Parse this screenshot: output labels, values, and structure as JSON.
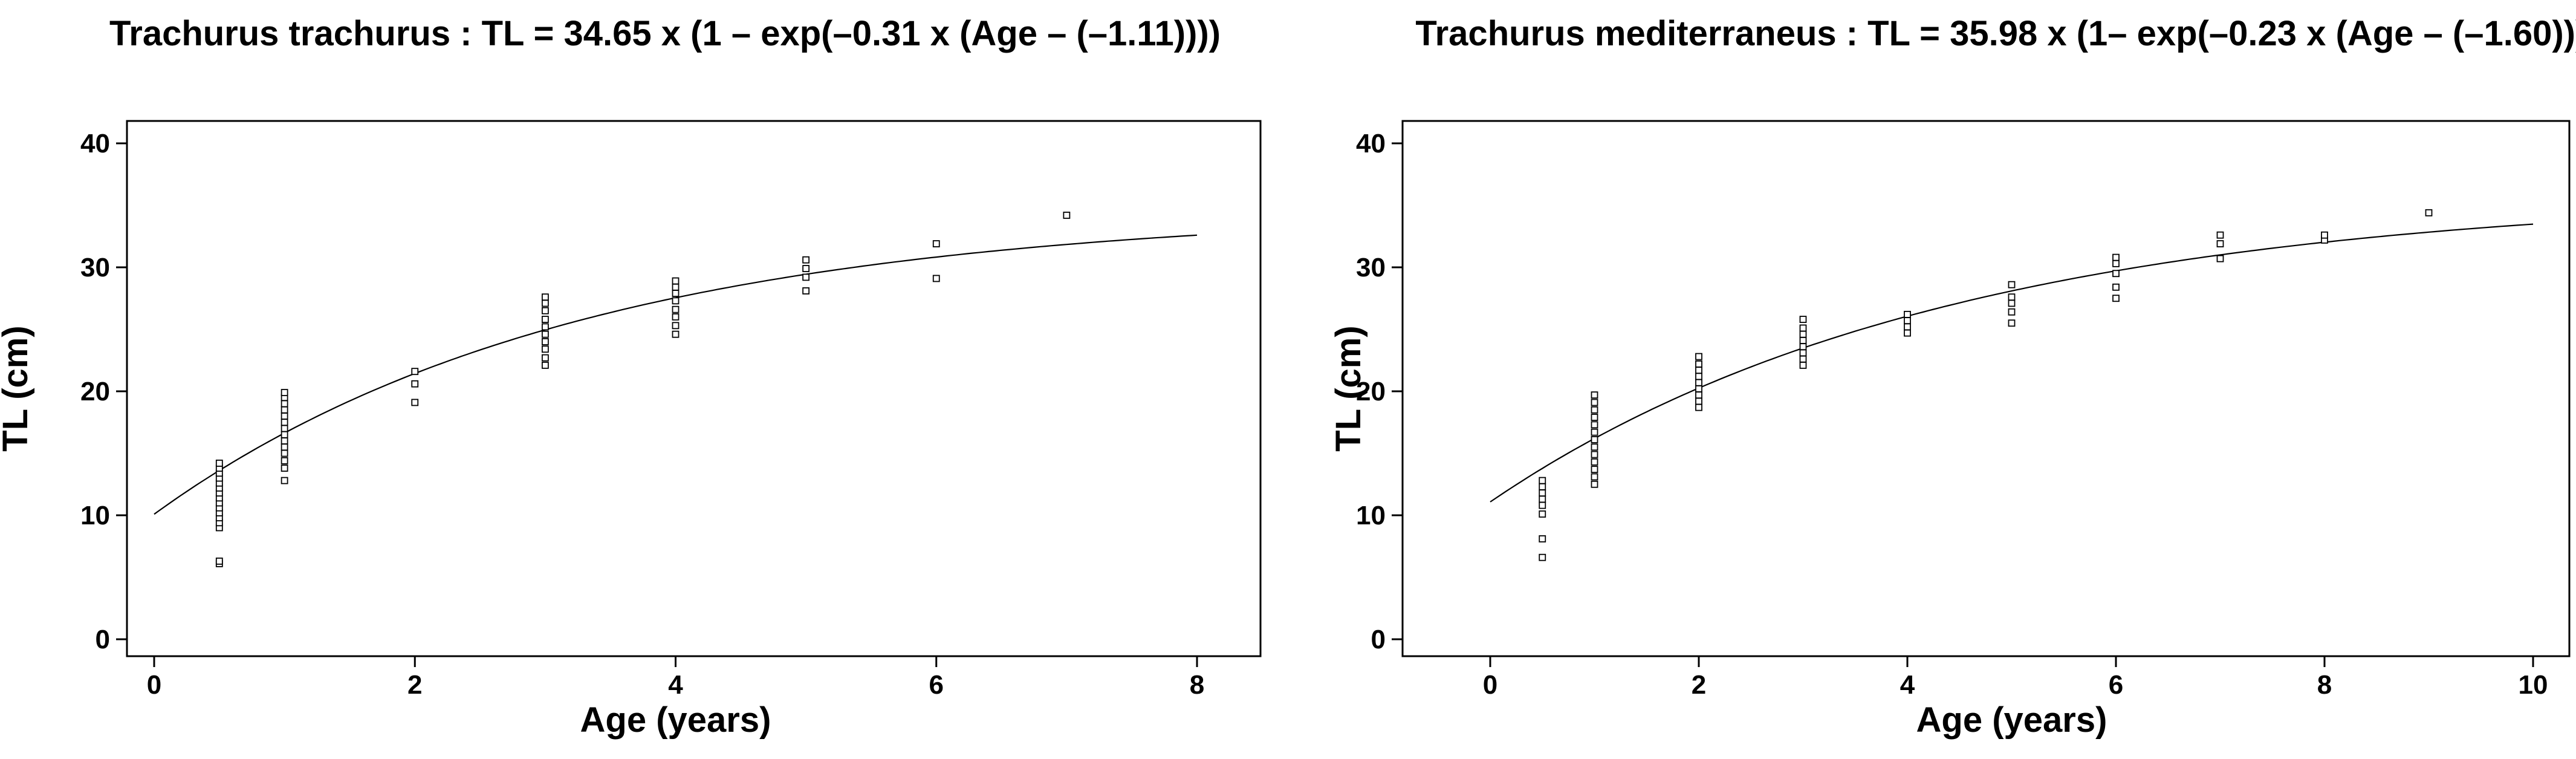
{
  "chart_data": [
    {
      "type": "scatter",
      "title": "Trachurus trachurus : TL = 34.65 x (1 – exp(–0.31 x (Age – (–1.11))))",
      "xlabel": "Age (years)",
      "ylabel": "TL (cm)",
      "xlim": [
        0,
        8
      ],
      "ylim": [
        0,
        40
      ],
      "xticks": [
        "0",
        "2",
        "4",
        "6",
        "8"
      ],
      "yticks": [
        "0",
        "10",
        "20",
        "30",
        "40"
      ],
      "grid": false,
      "curve": {
        "type": "von_bertalanffy",
        "Linf": 34.65,
        "k": 0.31,
        "t0": -1.11,
        "x_range": [
          0,
          8
        ]
      },
      "points": [
        {
          "x": 0.5,
          "y": 6.1
        },
        {
          "x": 0.5,
          "y": 6.3
        },
        {
          "x": 0.5,
          "y": 9.0
        },
        {
          "x": 0.5,
          "y": 9.4
        },
        {
          "x": 0.5,
          "y": 9.8
        },
        {
          "x": 0.5,
          "y": 10.2
        },
        {
          "x": 0.5,
          "y": 10.6
        },
        {
          "x": 0.5,
          "y": 11.0
        },
        {
          "x": 0.5,
          "y": 11.4
        },
        {
          "x": 0.5,
          "y": 11.8
        },
        {
          "x": 0.5,
          "y": 12.2
        },
        {
          "x": 0.5,
          "y": 12.6
        },
        {
          "x": 0.5,
          "y": 13.0
        },
        {
          "x": 0.5,
          "y": 13.4
        },
        {
          "x": 0.5,
          "y": 13.8
        },
        {
          "x": 0.5,
          "y": 14.2
        },
        {
          "x": 1,
          "y": 12.8
        },
        {
          "x": 1,
          "y": 13.8
        },
        {
          "x": 1,
          "y": 14.4
        },
        {
          "x": 1,
          "y": 15.0
        },
        {
          "x": 1,
          "y": 15.5
        },
        {
          "x": 1,
          "y": 16.0
        },
        {
          "x": 1,
          "y": 16.5
        },
        {
          "x": 1,
          "y": 17.0
        },
        {
          "x": 1,
          "y": 17.5
        },
        {
          "x": 1,
          "y": 18.0
        },
        {
          "x": 1,
          "y": 18.5
        },
        {
          "x": 1,
          "y": 19.0
        },
        {
          "x": 1,
          "y": 19.5
        },
        {
          "x": 1,
          "y": 19.9
        },
        {
          "x": 2,
          "y": 19.1
        },
        {
          "x": 2,
          "y": 20.6
        },
        {
          "x": 2,
          "y": 21.6
        },
        {
          "x": 3,
          "y": 22.1
        },
        {
          "x": 3,
          "y": 22.7
        },
        {
          "x": 3,
          "y": 23.4
        },
        {
          "x": 3,
          "y": 24.0
        },
        {
          "x": 3,
          "y": 24.6
        },
        {
          "x": 3,
          "y": 25.2
        },
        {
          "x": 3,
          "y": 25.8
        },
        {
          "x": 3,
          "y": 26.5
        },
        {
          "x": 3,
          "y": 27.1
        },
        {
          "x": 3,
          "y": 27.6
        },
        {
          "x": 4,
          "y": 24.6
        },
        {
          "x": 4,
          "y": 25.3
        },
        {
          "x": 4,
          "y": 26.0
        },
        {
          "x": 4,
          "y": 26.6
        },
        {
          "x": 4,
          "y": 27.3
        },
        {
          "x": 4,
          "y": 27.9
        },
        {
          "x": 4,
          "y": 28.4
        },
        {
          "x": 4,
          "y": 28.9
        },
        {
          "x": 5,
          "y": 28.1
        },
        {
          "x": 5,
          "y": 29.2
        },
        {
          "x": 5,
          "y": 29.9
        },
        {
          "x": 5,
          "y": 30.6
        },
        {
          "x": 6,
          "y": 29.1
        },
        {
          "x": 6,
          "y": 31.9
        },
        {
          "x": 7,
          "y": 34.2
        }
      ]
    },
    {
      "type": "scatter",
      "title": "Trachurus mediterraneus : TL = 35.98 x (1– exp(–0.23 x (Age – (–1.60))))",
      "xlabel": "Age (years)",
      "ylabel": "TL (cm)",
      "xlim": [
        0,
        10
      ],
      "ylim": [
        0,
        40
      ],
      "xticks": [
        "0",
        "2",
        "4",
        "6",
        "8",
        "10"
      ],
      "yticks": [
        "0",
        "10",
        "20",
        "30",
        "40"
      ],
      "grid": false,
      "curve": {
        "type": "von_bertalanffy",
        "Linf": 35.98,
        "k": 0.23,
        "t0": -1.6,
        "x_range": [
          0,
          10
        ]
      },
      "points": [
        {
          "x": 0.5,
          "y": 6.6
        },
        {
          "x": 0.5,
          "y": 8.1
        },
        {
          "x": 0.5,
          "y": 10.1
        },
        {
          "x": 0.5,
          "y": 10.8
        },
        {
          "x": 0.5,
          "y": 11.3
        },
        {
          "x": 0.5,
          "y": 11.8
        },
        {
          "x": 0.5,
          "y": 12.3
        },
        {
          "x": 0.5,
          "y": 12.8
        },
        {
          "x": 1,
          "y": 12.5
        },
        {
          "x": 1,
          "y": 13.1
        },
        {
          "x": 1,
          "y": 13.7
        },
        {
          "x": 1,
          "y": 14.3
        },
        {
          "x": 1,
          "y": 14.9
        },
        {
          "x": 1,
          "y": 15.5
        },
        {
          "x": 1,
          "y": 16.1
        },
        {
          "x": 1,
          "y": 16.7
        },
        {
          "x": 1,
          "y": 17.3
        },
        {
          "x": 1,
          "y": 17.9
        },
        {
          "x": 1,
          "y": 18.5
        },
        {
          "x": 1,
          "y": 19.1
        },
        {
          "x": 1,
          "y": 19.7
        },
        {
          "x": 2,
          "y": 18.7
        },
        {
          "x": 2,
          "y": 19.2
        },
        {
          "x": 2,
          "y": 19.7
        },
        {
          "x": 2,
          "y": 20.2
        },
        {
          "x": 2,
          "y": 20.7
        },
        {
          "x": 2,
          "y": 21.2
        },
        {
          "x": 2,
          "y": 21.7
        },
        {
          "x": 2,
          "y": 22.2
        },
        {
          "x": 2,
          "y": 22.8
        },
        {
          "x": 3,
          "y": 22.1
        },
        {
          "x": 3,
          "y": 22.6
        },
        {
          "x": 3,
          "y": 23.1
        },
        {
          "x": 3,
          "y": 23.6
        },
        {
          "x": 3,
          "y": 24.1
        },
        {
          "x": 3,
          "y": 24.6
        },
        {
          "x": 3,
          "y": 25.1
        },
        {
          "x": 3,
          "y": 25.8
        },
        {
          "x": 4,
          "y": 24.7
        },
        {
          "x": 4,
          "y": 25.2
        },
        {
          "x": 4,
          "y": 25.7
        },
        {
          "x": 4,
          "y": 26.2
        },
        {
          "x": 5,
          "y": 25.5
        },
        {
          "x": 5,
          "y": 26.4
        },
        {
          "x": 5,
          "y": 27.1
        },
        {
          "x": 5,
          "y": 27.6
        },
        {
          "x": 5,
          "y": 28.6
        },
        {
          "x": 6,
          "y": 27.5
        },
        {
          "x": 6,
          "y": 28.4
        },
        {
          "x": 6,
          "y": 29.5
        },
        {
          "x": 6,
          "y": 30.3
        },
        {
          "x": 6,
          "y": 30.8
        },
        {
          "x": 7,
          "y": 30.7
        },
        {
          "x": 7,
          "y": 31.9
        },
        {
          "x": 7,
          "y": 32.6
        },
        {
          "x": 8,
          "y": 32.2
        },
        {
          "x": 8,
          "y": 32.6
        },
        {
          "x": 9,
          "y": 34.4
        }
      ]
    }
  ]
}
